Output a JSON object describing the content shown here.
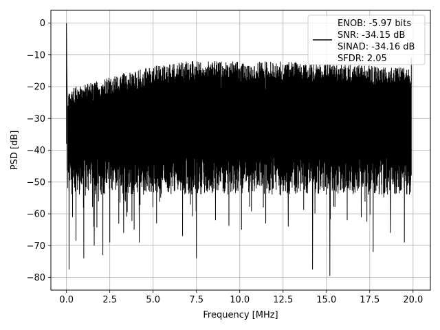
{
  "chart_data": {
    "type": "line",
    "xlabel": "Frequency [MHz]",
    "ylabel": "PSD [dB]",
    "xlim": [
      -0.9,
      21.0
    ],
    "ylim": [
      -84,
      4
    ],
    "xticks": [
      0.0,
      2.5,
      5.0,
      7.5,
      10.0,
      12.5,
      15.0,
      17.5,
      20.0
    ],
    "xtick_labels": [
      "0.0",
      "2.5",
      "5.0",
      "7.5",
      "10.0",
      "12.5",
      "15.0",
      "17.5",
      "20.0"
    ],
    "yticks": [
      0,
      -10,
      -20,
      -30,
      -40,
      -50,
      -60,
      -70,
      -80
    ],
    "ytick_labels": [
      "0",
      "−10",
      "−20",
      "−30",
      "−40",
      "−50",
      "−60",
      "−70",
      "−80"
    ],
    "grid": true,
    "legend_position": "top-right",
    "legend_lines": [
      "ENOB: -5.97 bits",
      "SNR: -34.15 dB",
      "SINAD: -34.16 dB",
      "SFDR: 2.05"
    ],
    "series": [
      {
        "color": "#000000",
        "peak": {
          "x": 0.0,
          "y": 0
        },
        "upper_envelope": {
          "x": [
            0.05,
            0.5,
            1.0,
            2.0,
            3.0,
            4.0,
            5.0,
            6.0,
            7.0,
            8.0,
            10.0,
            12.0,
            14.0,
            16.0,
            18.0,
            19.9
          ],
          "y": [
            -22,
            -20,
            -19,
            -18,
            -16,
            -15,
            -13.5,
            -13,
            -12,
            -12,
            -12,
            -12,
            -12.5,
            -13,
            -13.5,
            -14
          ]
        },
        "dense_band_bottom_y": -52,
        "deep_nulls": [
          {
            "x": 0.15,
            "y": -77.5
          },
          {
            "x": 0.35,
            "y": -61
          },
          {
            "x": 0.55,
            "y": -68.5
          },
          {
            "x": 1.0,
            "y": -74
          },
          {
            "x": 1.6,
            "y": -70
          },
          {
            "x": 2.1,
            "y": -73
          },
          {
            "x": 2.5,
            "y": -69
          },
          {
            "x": 3.3,
            "y": -66
          },
          {
            "x": 4.2,
            "y": -69
          },
          {
            "x": 5.2,
            "y": -63
          },
          {
            "x": 6.7,
            "y": -67
          },
          {
            "x": 7.5,
            "y": -74
          },
          {
            "x": 8.6,
            "y": -62
          },
          {
            "x": 10.1,
            "y": -65
          },
          {
            "x": 11.5,
            "y": -63
          },
          {
            "x": 12.8,
            "y": -64
          },
          {
            "x": 14.2,
            "y": -77.5
          },
          {
            "x": 15.2,
            "y": -79.5
          },
          {
            "x": 16.2,
            "y": -62
          },
          {
            "x": 17.7,
            "y": -72
          },
          {
            "x": 18.7,
            "y": -66
          },
          {
            "x": 19.5,
            "y": -69
          }
        ]
      }
    ]
  }
}
